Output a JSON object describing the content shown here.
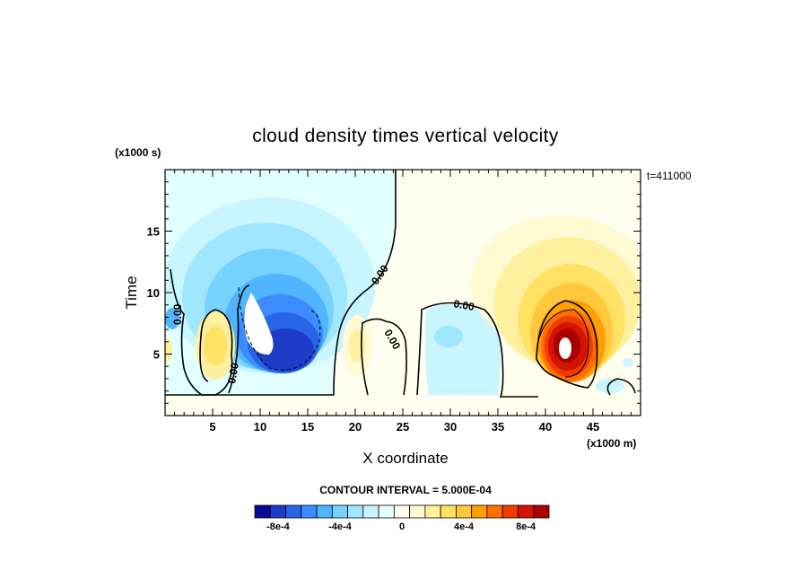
{
  "chart_data": {
    "type": "heatmap",
    "title": "cloud density times vertical velocity",
    "xlabel": "X coordinate",
    "ylabel": "Time",
    "x_unit": "(x1000 m)",
    "y_unit": "(x1000 s)",
    "time_stamp": "t=411000",
    "contour_interval": "CONTOUR INTERVAL = 5.000E-04",
    "xlim": [
      0,
      50
    ],
    "ylim": [
      0,
      20
    ],
    "x_ticks": [
      "5",
      "10",
      "15",
      "20",
      "25",
      "30",
      "35",
      "40",
      "45"
    ],
    "y_ticks": [
      "5",
      "10",
      "15"
    ],
    "x_tick_values": [
      5,
      10,
      15,
      20,
      25,
      30,
      35,
      40,
      45
    ],
    "y_tick_values": [
      5,
      10,
      15
    ],
    "contour_line_labels": [
      "0.00",
      "0.00",
      "0.00",
      "0.00",
      "0.00"
    ],
    "colorbar": {
      "colors": [
        "#0a0a96",
        "#1e3cc8",
        "#2864e6",
        "#3c8cff",
        "#50b4ff",
        "#78d2ff",
        "#a0e6ff",
        "#c8f5ff",
        "#e1ffff",
        "#fffff0",
        "#fffad2",
        "#fff0a0",
        "#ffe164",
        "#ffc83c",
        "#ffa000",
        "#ff6e00",
        "#f03c00",
        "#d21400",
        "#aa0000"
      ],
      "labels": [
        "-8e-4",
        "-4e-4",
        "0",
        "4e-4",
        "8e-4"
      ],
      "label_values": [
        -0.0008,
        -0.0004,
        0,
        0.0004,
        0.0008
      ]
    },
    "features": [
      {
        "kind": "negative",
        "x": 11,
        "y": 9,
        "min": -0.0011
      },
      {
        "kind": "negative",
        "x": 30,
        "y": 6,
        "min": -0.0002
      },
      {
        "kind": "negative",
        "x": 3,
        "y": 7,
        "min": -0.0003
      },
      {
        "kind": "positive",
        "x": 41.5,
        "y": 6,
        "max": 0.001
      },
      {
        "kind": "positive",
        "x": 5.5,
        "y": 5,
        "max": 0.0003
      },
      {
        "kind": "positive",
        "x": 20.5,
        "y": 5,
        "max": 0.0002
      }
    ]
  }
}
